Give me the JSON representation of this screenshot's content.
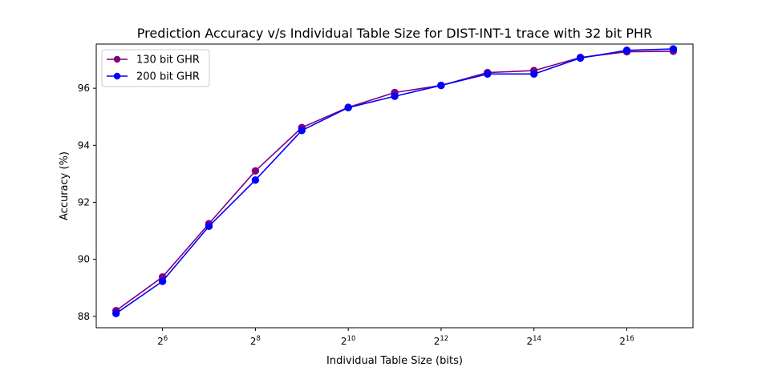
{
  "chart_data": {
    "type": "line",
    "title": "Prediction Accuracy v/s Individual Table Size for DIST-INT-1 trace with 32 bit PHR",
    "xlabel": "Individual Table Size (bits)",
    "ylabel": "Accuracy (%)",
    "x_scale": "log2",
    "x": [
      32,
      64,
      128,
      256,
      512,
      1024,
      2048,
      4096,
      8192,
      16384,
      32768,
      65536,
      131072
    ],
    "xlim": [
      23.8,
      176000
    ],
    "ylim": [
      87.6,
      97.55
    ],
    "x_ticks": [
      {
        "value": 64,
        "base": "2",
        "exp": "6"
      },
      {
        "value": 256,
        "base": "2",
        "exp": "8"
      },
      {
        "value": 1024,
        "base": "2",
        "exp": "10"
      },
      {
        "value": 4096,
        "base": "2",
        "exp": "12"
      },
      {
        "value": 16384,
        "base": "2",
        "exp": "14"
      },
      {
        "value": 65536,
        "base": "2",
        "exp": "16"
      }
    ],
    "y_ticks": [
      {
        "value": 88,
        "label": "88"
      },
      {
        "value": 90,
        "label": "90"
      },
      {
        "value": 92,
        "label": "92"
      },
      {
        "value": 94,
        "label": "94"
      },
      {
        "value": 96,
        "label": "96"
      }
    ],
    "grid": false,
    "legend_position": "top-left",
    "series": [
      {
        "name": "130 bit GHR",
        "color": "#800080",
        "values": [
          88.2,
          89.38,
          91.25,
          93.1,
          94.62,
          95.33,
          95.85,
          96.1,
          96.55,
          96.62,
          97.08,
          97.28,
          97.3
        ]
      },
      {
        "name": "200 bit GHR",
        "color": "#0000ff",
        "values": [
          88.1,
          89.23,
          91.16,
          92.78,
          94.52,
          95.32,
          95.72,
          96.1,
          96.5,
          96.5,
          97.06,
          97.33,
          97.38
        ]
      }
    ]
  }
}
